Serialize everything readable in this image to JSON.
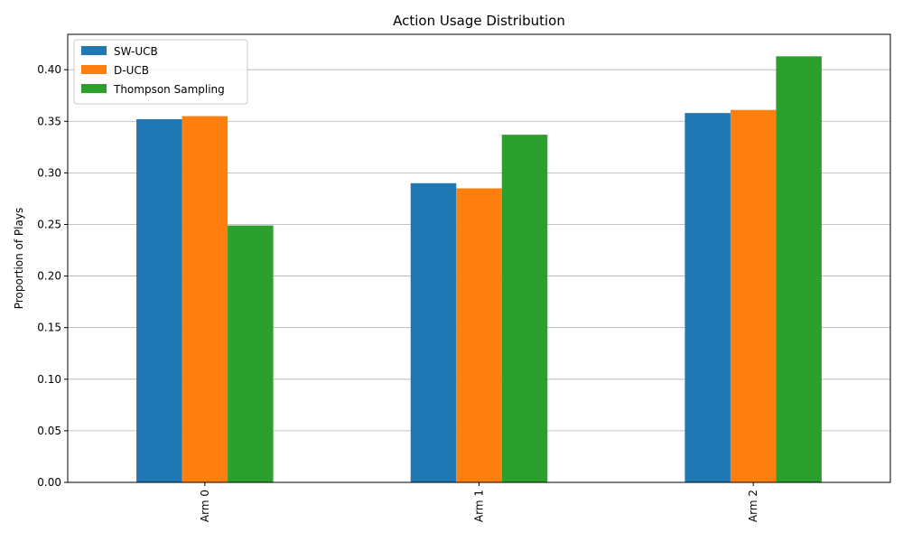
{
  "chart_data": {
    "type": "bar",
    "title": "Action Usage Distribution",
    "xlabel": "",
    "ylabel": "Proportion of Plays",
    "categories": [
      "Arm 0",
      "Arm 1",
      "Arm 2"
    ],
    "series": [
      {
        "name": "SW-UCB",
        "color": "#1f77b4",
        "values": [
          0.352,
          0.29,
          0.358
        ]
      },
      {
        "name": "D-UCB",
        "color": "#ff7f0e",
        "values": [
          0.355,
          0.285,
          0.361
        ]
      },
      {
        "name": "Thompson Sampling",
        "color": "#2ca02c",
        "values": [
          0.249,
          0.337,
          0.413
        ]
      }
    ],
    "ylim": [
      0,
      0.4343
    ],
    "yticks": [
      "0.00",
      "0.05",
      "0.10",
      "0.15",
      "0.20",
      "0.25",
      "0.30",
      "0.35",
      "0.40"
    ],
    "ytick_values": [
      0,
      0.05,
      0.1,
      0.15,
      0.2,
      0.25,
      0.3,
      0.35,
      0.4
    ],
    "grid": "y-major",
    "legend_position": "top-left",
    "x_tick_rotation": "vertical"
  }
}
